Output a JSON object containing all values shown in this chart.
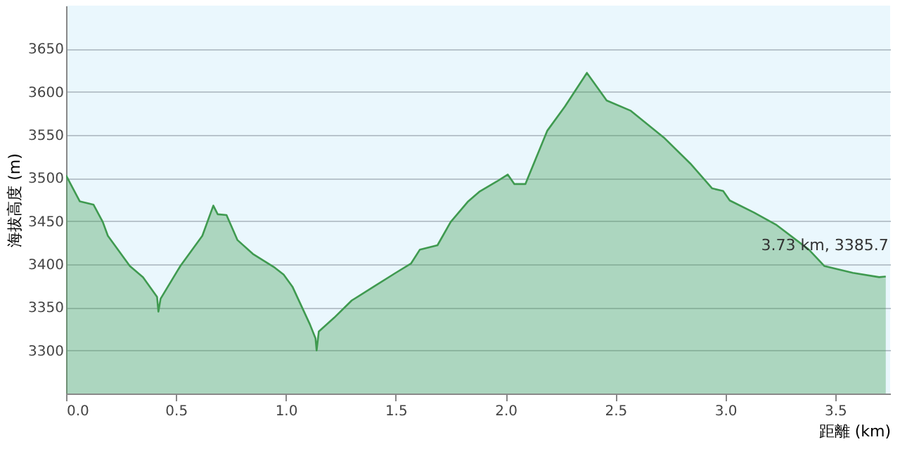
{
  "chart_data": {
    "type": "area",
    "xlabel": "距離 (km)",
    "ylabel": "海拔高度 (m)",
    "x": [
      0,
      0.062,
      0.125,
      0.167,
      0.19,
      0.29,
      0.35,
      0.414,
      0.42,
      0.43,
      0.52,
      0.62,
      0.67,
      0.69,
      0.73,
      0.78,
      0.85,
      0.95,
      0.99,
      1.03,
      1.11,
      1.135,
      1.14,
      1.15,
      1.22,
      1.3,
      1.4,
      1.5,
      1.57,
      1.61,
      1.69,
      1.75,
      1.83,
      1.88,
      1.96,
      2.01,
      2.04,
      2.09,
      2.19,
      2.27,
      2.37,
      2.46,
      2.57,
      2.72,
      2.84,
      2.94,
      2.99,
      3.02,
      3.13,
      3.23,
      3.38,
      3.45,
      3.58,
      3.7,
      3.73
    ],
    "series": [
      {
        "color": "#3f9a50",
        "values": [
          3503,
          3473,
          3469,
          3449,
          3433,
          3398,
          3385,
          3362,
          3345,
          3360,
          3398,
          3433,
          3468,
          3458,
          3457,
          3428,
          3412,
          3396,
          3388,
          3374,
          3330,
          3314,
          3300,
          3322,
          3338,
          3358,
          3374,
          3390,
          3401,
          3417,
          3422,
          3449,
          3473,
          3484,
          3496,
          3504,
          3493,
          3493,
          3555,
          3583,
          3622,
          3590,
          3578,
          3547,
          3517,
          3488,
          3485,
          3474,
          3460,
          3446,
          3417,
          3398,
          3390,
          3385,
          3385.7
        ]
      }
    ],
    "xlim": [
      0,
      3.75
    ],
    "xticks": [
      {
        "value": 0,
        "label": "0.0"
      },
      0.5,
      {
        "value": 1,
        "label": "1.0"
      },
      1.5,
      {
        "value": 2,
        "label": "2.0"
      },
      2.5,
      {
        "value": 3,
        "label": "3.0"
      },
      3.5
    ],
    "ylim": [
      3250,
      3700
    ],
    "yticks": [
      3300,
      3350,
      3400,
      3450,
      3500,
      3550,
      3600,
      3650
    ],
    "grid": "y",
    "annotations": [
      {
        "text": "3.73 km, 3385.7",
        "x": 3.73,
        "y": 3385.7
      }
    ]
  }
}
